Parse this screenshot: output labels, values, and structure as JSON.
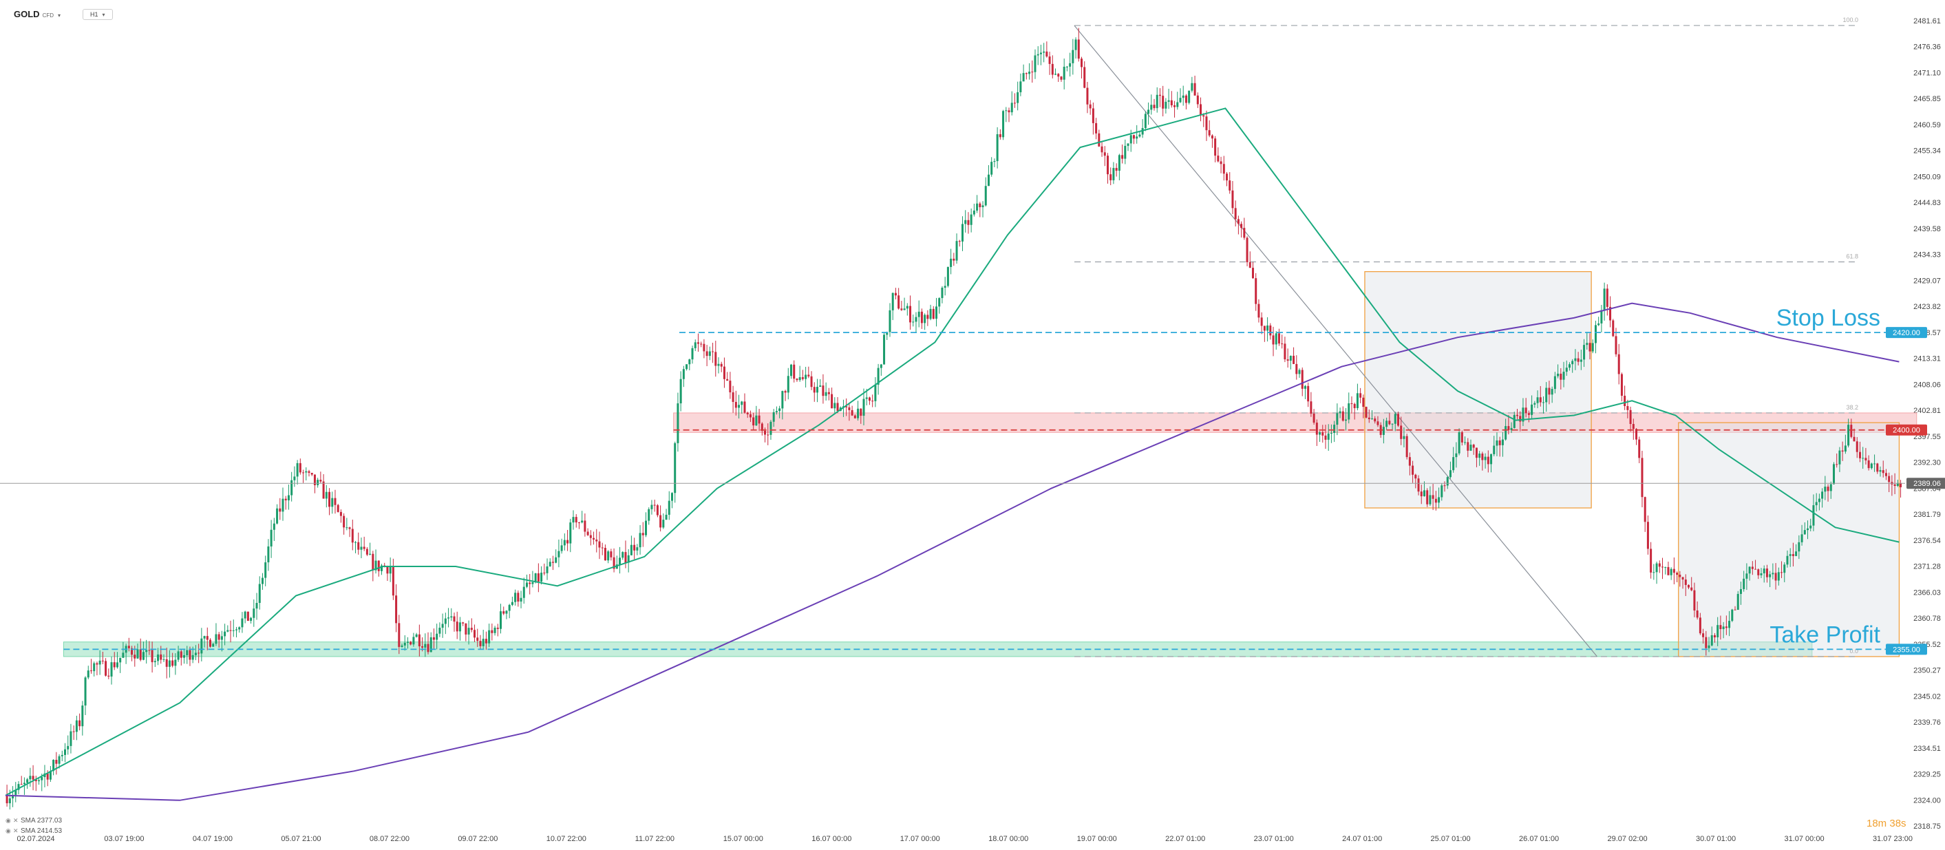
{
  "header": {
    "symbol": "GOLD",
    "symbol_type": "CFD",
    "timeframe": "H1"
  },
  "indicators": [
    {
      "label": "SMA 2377.03",
      "color": "#1aaa7e"
    },
    {
      "label": "SMA 2414.53",
      "color": "#6a3fb5"
    }
  ],
  "countdown": "18m 38s",
  "colors": {
    "bull": "#1a9c6b",
    "bear": "#c8263b",
    "sma_fast": "#1aaa7e",
    "sma_slow": "#6a3fb5",
    "stop_loss": "#2aa8d8",
    "entry": "#d83a3a",
    "take_profit": "#2aa8d8",
    "fib": "#9aa0a6",
    "box": "#f0a040"
  },
  "chart_data": {
    "type": "candlestick",
    "ylim": [
      2318.75,
      2484.0
    ],
    "y_ticks": [
      "2481.61",
      "2476.36",
      "2471.10",
      "2465.85",
      "2460.59",
      "2455.34",
      "2450.09",
      "2444.83",
      "2439.58",
      "2434.33",
      "2429.07",
      "2423.82",
      "2418.57",
      "2413.31",
      "2408.06",
      "2402.81",
      "2397.55",
      "2392.30",
      "2387.04",
      "2381.79",
      "2376.54",
      "2371.28",
      "2366.03",
      "2360.78",
      "2355.52",
      "2350.27",
      "2345.02",
      "2339.76",
      "2334.51",
      "2329.25",
      "2324.00",
      "2318.75"
    ],
    "x_labels": [
      "02.07.2024",
      "03.07 19:00",
      "04.07 19:00",
      "05.07 21:00",
      "08.07 22:00",
      "09.07 22:00",
      "10.07 22:00",
      "11.07 22:00",
      "15.07 00:00",
      "16.07 00:00",
      "17.07 00:00",
      "18.07 00:00",
      "19.07 00:00",
      "22.07 01:00",
      "23.07 01:00",
      "24.07 01:00",
      "25.07 01:00",
      "26.07 01:00",
      "29.07 02:00",
      "30.07 01:00",
      "31.07 00:00",
      "31.07 23:00"
    ],
    "last_price": "2389.06",
    "price_path": [
      [
        0,
        2325
      ],
      [
        15,
        2330
      ],
      [
        25,
        2340
      ],
      [
        28,
        2352
      ],
      [
        35,
        2351
      ],
      [
        42,
        2355
      ],
      [
        55,
        2352
      ],
      [
        62,
        2354
      ],
      [
        70,
        2357
      ],
      [
        78,
        2360
      ],
      [
        85,
        2362
      ],
      [
        92,
        2381
      ],
      [
        100,
        2392
      ],
      [
        108,
        2388
      ],
      [
        115,
        2382
      ],
      [
        120,
        2376
      ],
      [
        127,
        2372
      ],
      [
        132,
        2372
      ],
      [
        135,
        2354
      ],
      [
        140,
        2358
      ],
      [
        145,
        2356
      ],
      [
        150,
        2361
      ],
      [
        158,
        2359
      ],
      [
        163,
        2356
      ],
      [
        167,
        2358
      ],
      [
        172,
        2364
      ],
      [
        180,
        2368
      ],
      [
        188,
        2372
      ],
      [
        196,
        2382
      ],
      [
        204,
        2376
      ],
      [
        210,
        2372
      ],
      [
        218,
        2378
      ],
      [
        222,
        2384
      ],
      [
        226,
        2380
      ],
      [
        229,
        2388
      ],
      [
        231,
        2407
      ],
      [
        236,
        2418
      ],
      [
        244,
        2414
      ],
      [
        252,
        2405
      ],
      [
        262,
        2400
      ],
      [
        270,
        2412
      ],
      [
        280,
        2408
      ],
      [
        290,
        2403
      ],
      [
        298,
        2406
      ],
      [
        305,
        2427
      ],
      [
        312,
        2423
      ],
      [
        320,
        2424
      ],
      [
        328,
        2440
      ],
      [
        336,
        2447
      ],
      [
        343,
        2464
      ],
      [
        350,
        2472
      ],
      [
        356,
        2478
      ],
      [
        362,
        2472
      ],
      [
        368,
        2479
      ],
      [
        374,
        2462
      ],
      [
        380,
        2452
      ],
      [
        385,
        2458
      ],
      [
        390,
        2461
      ],
      [
        396,
        2468
      ],
      [
        402,
        2466
      ],
      [
        408,
        2470
      ],
      [
        414,
        2460
      ],
      [
        420,
        2450
      ],
      [
        426,
        2438
      ],
      [
        432,
        2422
      ],
      [
        440,
        2416
      ],
      [
        446,
        2410
      ],
      [
        452,
        2398
      ],
      [
        458,
        2402
      ],
      [
        465,
        2406
      ],
      [
        472,
        2400
      ],
      [
        478,
        2403
      ],
      [
        486,
        2388
      ],
      [
        492,
        2384
      ],
      [
        500,
        2398
      ],
      [
        510,
        2393
      ],
      [
        518,
        2402
      ],
      [
        528,
        2406
      ],
      [
        538,
        2413
      ],
      [
        546,
        2418
      ],
      [
        550,
        2428
      ],
      [
        553,
        2418
      ],
      [
        556,
        2406
      ],
      [
        561,
        2398
      ],
      [
        566,
        2372
      ],
      [
        574,
        2370
      ],
      [
        580,
        2366
      ],
      [
        584,
        2356
      ],
      [
        588,
        2358
      ],
      [
        594,
        2362
      ],
      [
        600,
        2372
      ],
      [
        608,
        2370
      ],
      [
        615,
        2374
      ],
      [
        622,
        2383
      ],
      [
        628,
        2390
      ],
      [
        634,
        2400
      ],
      [
        640,
        2393
      ],
      [
        648,
        2390
      ],
      [
        652,
        2387
      ]
    ],
    "series": [
      {
        "name": "SMA 2377.03",
        "color": "#1aaa7e",
        "points": [
          [
            0,
            2325
          ],
          [
            60,
            2344
          ],
          [
            100,
            2366
          ],
          [
            130,
            2372
          ],
          [
            155,
            2372
          ],
          [
            190,
            2368
          ],
          [
            220,
            2374
          ],
          [
            245,
            2388
          ],
          [
            280,
            2401
          ],
          [
            320,
            2418
          ],
          [
            345,
            2440
          ],
          [
            370,
            2458
          ],
          [
            395,
            2462
          ],
          [
            420,
            2466
          ],
          [
            440,
            2450
          ],
          [
            460,
            2434
          ],
          [
            480,
            2418
          ],
          [
            500,
            2408
          ],
          [
            520,
            2402
          ],
          [
            540,
            2403
          ],
          [
            560,
            2406
          ],
          [
            575,
            2403
          ],
          [
            590,
            2396
          ],
          [
            610,
            2388
          ],
          [
            630,
            2380
          ],
          [
            652,
            2377
          ]
        ]
      },
      {
        "name": "SMA 2414.53",
        "color": "#6a3fb5",
        "points": [
          [
            0,
            2325
          ],
          [
            60,
            2324
          ],
          [
            120,
            2330
          ],
          [
            180,
            2338
          ],
          [
            240,
            2354
          ],
          [
            300,
            2370
          ],
          [
            360,
            2388
          ],
          [
            420,
            2403
          ],
          [
            460,
            2413
          ],
          [
            500,
            2419
          ],
          [
            540,
            2423
          ],
          [
            560,
            2426
          ],
          [
            580,
            2424
          ],
          [
            610,
            2419
          ],
          [
            652,
            2414
          ]
        ]
      }
    ],
    "levels": [
      {
        "name": "stop_loss",
        "label": "Stop Loss",
        "price": 2420.0,
        "price_label": "2420.00",
        "color": "#2aa8d8"
      },
      {
        "name": "entry",
        "price": 2400.0,
        "price_label": "2400.00",
        "color": "#d83a3a"
      },
      {
        "name": "take_profit",
        "label": "Take Profit",
        "price": 2355.0,
        "price_label": "2355.00",
        "color": "#2aa8d8"
      }
    ],
    "fib_levels": [
      {
        "label": "100.0",
        "price": 2483.0
      },
      {
        "label": "61.8",
        "price": 2434.5
      },
      {
        "label": "38.2",
        "price": 2403.5
      },
      {
        "label": "0.0",
        "price": 2353.5
      }
    ],
    "zones": [
      {
        "name": "support-zone",
        "from_index": 20,
        "to_index": 622,
        "low": 2353.5,
        "high": 2356.5,
        "color": "#7ed9b0"
      },
      {
        "name": "resistance-zone",
        "from_index": 230,
        "to_index": 658,
        "low": 2399.5,
        "high": 2403.5,
        "color": "#f4a7aa"
      }
    ],
    "boxes": [
      {
        "name": "consolidation-box-1",
        "from_index": 468,
        "to_index": 546,
        "low": 2384.0,
        "high": 2432.5
      },
      {
        "name": "consolidation-box-2",
        "from_index": 576,
        "to_index": 652,
        "low": 2353.5,
        "high": 2401.5
      }
    ],
    "trend_line": {
      "from": [
        368,
        2483.0
      ],
      "to": [
        548,
        2353.5
      ]
    }
  }
}
